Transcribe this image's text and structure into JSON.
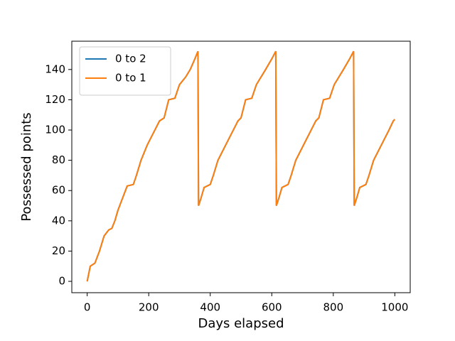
{
  "chart_data": {
    "type": "line",
    "x_label": "Days elapsed",
    "y_label": "Possessed points",
    "x": [
      0,
      10,
      25,
      40,
      55,
      70,
      80,
      90,
      100,
      115,
      130,
      150,
      160,
      175,
      195,
      220,
      235,
      250,
      265,
      285,
      300,
      320,
      335,
      350,
      360,
      362,
      370,
      380,
      400,
      410,
      425,
      450,
      475,
      490,
      500,
      515,
      535,
      550,
      580,
      600,
      613,
      615,
      623,
      633,
      653,
      663,
      678,
      703,
      728,
      743,
      753,
      768,
      788,
      803,
      833,
      853,
      866,
      868,
      876,
      886,
      906,
      916,
      931,
      956,
      981,
      995,
      1000
    ],
    "series": [
      {
        "name": "0 to 2",
        "color": "#1f77b4",
        "values": [
          0,
          10,
          12,
          20,
          30,
          34,
          35,
          40,
          47,
          55,
          63,
          64,
          70,
          80,
          90,
          100,
          106,
          108,
          120,
          121,
          130,
          135,
          140,
          147,
          152,
          50,
          55,
          62,
          64,
          70,
          80,
          90,
          100,
          106,
          108,
          120,
          121,
          130,
          140,
          147,
          152,
          50,
          55,
          62,
          64,
          70,
          80,
          90,
          100,
          106,
          108,
          120,
          121,
          130,
          140,
          147,
          152,
          50,
          55,
          62,
          64,
          70,
          80,
          90,
          100,
          106,
          107
        ]
      },
      {
        "name": "0 to 1",
        "color": "#ff7f0e",
        "values": [
          0,
          10,
          12,
          20,
          30,
          34,
          35,
          40,
          47,
          55,
          63,
          64,
          70,
          80,
          90,
          100,
          106,
          108,
          120,
          121,
          130,
          135,
          140,
          147,
          152,
          50,
          55,
          62,
          64,
          70,
          80,
          90,
          100,
          106,
          108,
          120,
          121,
          130,
          140,
          147,
          152,
          50,
          55,
          62,
          64,
          70,
          80,
          90,
          100,
          106,
          108,
          120,
          121,
          130,
          140,
          147,
          152,
          50,
          55,
          62,
          64,
          70,
          80,
          90,
          100,
          106,
          107
        ]
      }
    ],
    "xlim": [
      -50,
      1050
    ],
    "xticks": [
      0,
      200,
      400,
      600,
      800,
      1000
    ],
    "ylim": [
      -7.5,
      158.7
    ],
    "yticks": [
      0,
      20,
      40,
      60,
      80,
      100,
      120,
      140
    ],
    "grid": false,
    "legend": "upper-left"
  }
}
